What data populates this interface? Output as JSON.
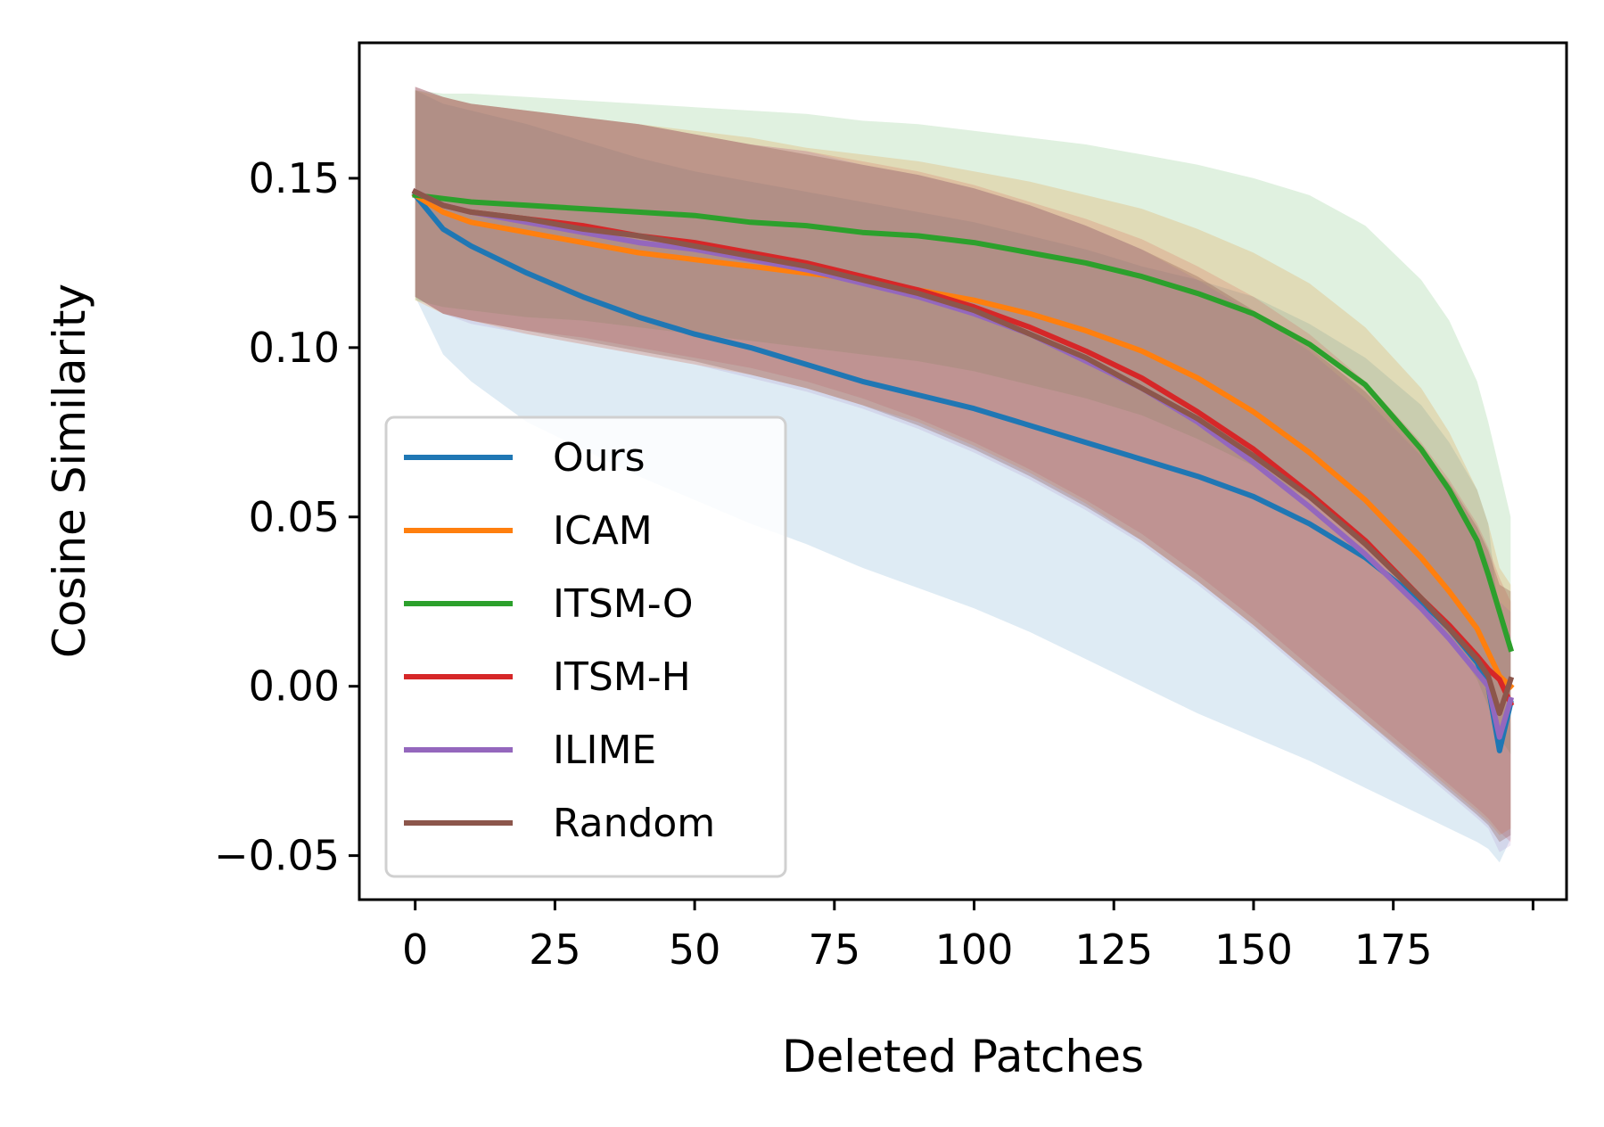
{
  "chart_data": {
    "type": "line",
    "title": "",
    "xlabel": "Deleted Patches",
    "ylabel": "Cosine Similarity",
    "xlim": [
      -10,
      206
    ],
    "ylim": [
      -0.063,
      0.19
    ],
    "xticks": [
      0,
      25,
      50,
      75,
      100,
      125,
      150,
      175
    ],
    "xtick_labels": [
      "0",
      "25",
      "50",
      "75",
      "100",
      "125",
      "150",
      "175"
    ],
    "yticks": [
      -0.05,
      0.0,
      0.05,
      0.1,
      0.15
    ],
    "ytick_labels": [
      "−0.05",
      "0.00",
      "0.05",
      "0.10",
      "0.15"
    ],
    "grid": false,
    "legend_position": "lower-left",
    "x": [
      0,
      5,
      10,
      20,
      30,
      40,
      50,
      60,
      70,
      80,
      90,
      100,
      110,
      120,
      130,
      140,
      150,
      160,
      170,
      180,
      185,
      190,
      192,
      194,
      196
    ],
    "series": [
      {
        "name": "Ours",
        "color": "#1f77b4",
        "band_alpha": 0.15,
        "values": [
          0.145,
          0.135,
          0.13,
          0.122,
          0.115,
          0.109,
          0.104,
          0.1,
          0.095,
          0.09,
          0.086,
          0.082,
          0.077,
          0.072,
          0.067,
          0.062,
          0.056,
          0.048,
          0.038,
          0.025,
          0.017,
          0.007,
          0.0,
          -0.019,
          -0.005
        ],
        "lower": [
          0.115,
          0.098,
          0.09,
          0.078,
          0.07,
          0.062,
          0.055,
          0.048,
          0.042,
          0.035,
          0.029,
          0.023,
          0.016,
          0.008,
          0.0,
          -0.008,
          -0.015,
          -0.022,
          -0.03,
          -0.038,
          -0.042,
          -0.046,
          -0.048,
          -0.052,
          -0.045
        ],
        "upper": [
          0.176,
          0.172,
          0.17,
          0.166,
          0.161,
          0.156,
          0.152,
          0.149,
          0.146,
          0.143,
          0.14,
          0.137,
          0.133,
          0.129,
          0.124,
          0.12,
          0.115,
          0.107,
          0.097,
          0.083,
          0.072,
          0.058,
          0.048,
          0.02,
          0.015
        ]
      },
      {
        "name": "ICAM",
        "color": "#ff7f0e",
        "band_alpha": 0.2,
        "values": [
          0.145,
          0.14,
          0.137,
          0.134,
          0.131,
          0.128,
          0.126,
          0.124,
          0.122,
          0.12,
          0.117,
          0.114,
          0.11,
          0.105,
          0.099,
          0.091,
          0.081,
          0.069,
          0.055,
          0.038,
          0.028,
          0.017,
          0.01,
          0.003,
          0.0
        ],
        "lower": [
          0.114,
          0.11,
          0.108,
          0.104,
          0.101,
          0.098,
          0.095,
          0.092,
          0.088,
          0.083,
          0.078,
          0.071,
          0.063,
          0.054,
          0.043,
          0.031,
          0.018,
          0.004,
          -0.01,
          -0.023,
          -0.03,
          -0.037,
          -0.04,
          -0.044,
          -0.042
        ],
        "upper": [
          0.176,
          0.174,
          0.172,
          0.17,
          0.168,
          0.166,
          0.164,
          0.162,
          0.159,
          0.157,
          0.155,
          0.152,
          0.149,
          0.145,
          0.141,
          0.135,
          0.128,
          0.119,
          0.106,
          0.088,
          0.075,
          0.058,
          0.048,
          0.035,
          0.03
        ]
      },
      {
        "name": "ITSM-O",
        "color": "#2ca02c",
        "band_alpha": 0.15,
        "values": [
          0.145,
          0.144,
          0.143,
          0.142,
          0.141,
          0.14,
          0.139,
          0.137,
          0.136,
          0.134,
          0.133,
          0.131,
          0.128,
          0.125,
          0.121,
          0.116,
          0.11,
          0.101,
          0.089,
          0.07,
          0.058,
          0.043,
          0.033,
          0.022,
          0.011
        ],
        "lower": [
          0.114,
          0.112,
          0.111,
          0.109,
          0.108,
          0.106,
          0.104,
          0.102,
          0.1,
          0.098,
          0.096,
          0.093,
          0.089,
          0.085,
          0.08,
          0.073,
          0.065,
          0.055,
          0.042,
          0.025,
          0.015,
          0.002,
          -0.006,
          -0.015,
          -0.02
        ],
        "upper": [
          0.176,
          0.175,
          0.175,
          0.174,
          0.173,
          0.172,
          0.171,
          0.17,
          0.169,
          0.167,
          0.166,
          0.164,
          0.162,
          0.16,
          0.157,
          0.154,
          0.15,
          0.145,
          0.136,
          0.12,
          0.108,
          0.09,
          0.078,
          0.064,
          0.05
        ]
      },
      {
        "name": "ITSM-H",
        "color": "#d62728",
        "band_alpha": 0.15,
        "values": [
          0.146,
          0.142,
          0.14,
          0.138,
          0.136,
          0.133,
          0.131,
          0.128,
          0.125,
          0.121,
          0.117,
          0.112,
          0.106,
          0.099,
          0.091,
          0.081,
          0.07,
          0.057,
          0.043,
          0.026,
          0.018,
          0.009,
          0.005,
          0.002,
          -0.005
        ],
        "lower": [
          0.115,
          0.11,
          0.108,
          0.105,
          0.103,
          0.1,
          0.097,
          0.094,
          0.09,
          0.085,
          0.079,
          0.072,
          0.064,
          0.055,
          0.045,
          0.033,
          0.02,
          0.006,
          -0.008,
          -0.022,
          -0.029,
          -0.036,
          -0.039,
          -0.043,
          -0.046
        ],
        "upper": [
          0.177,
          0.174,
          0.172,
          0.17,
          0.168,
          0.166,
          0.163,
          0.16,
          0.158,
          0.155,
          0.152,
          0.148,
          0.143,
          0.138,
          0.132,
          0.124,
          0.115,
          0.104,
          0.09,
          0.072,
          0.061,
          0.048,
          0.041,
          0.032,
          0.025
        ]
      },
      {
        "name": "ILIME",
        "color": "#9467bd",
        "band_alpha": 0.15,
        "values": [
          0.146,
          0.142,
          0.14,
          0.137,
          0.134,
          0.131,
          0.129,
          0.126,
          0.123,
          0.119,
          0.115,
          0.11,
          0.104,
          0.096,
          0.088,
          0.078,
          0.066,
          0.053,
          0.039,
          0.023,
          0.014,
          0.004,
          0.0,
          -0.015,
          -0.004
        ],
        "lower": [
          0.115,
          0.11,
          0.107,
          0.104,
          0.101,
          0.098,
          0.095,
          0.091,
          0.087,
          0.082,
          0.076,
          0.069,
          0.061,
          0.052,
          0.042,
          0.03,
          0.017,
          0.003,
          -0.011,
          -0.025,
          -0.032,
          -0.039,
          -0.042,
          -0.049,
          -0.047
        ],
        "upper": [
          0.177,
          0.174,
          0.172,
          0.17,
          0.168,
          0.166,
          0.163,
          0.16,
          0.158,
          0.154,
          0.151,
          0.147,
          0.142,
          0.136,
          0.129,
          0.12,
          0.11,
          0.099,
          0.085,
          0.068,
          0.057,
          0.044,
          0.037,
          0.025,
          0.022
        ]
      },
      {
        "name": "Random",
        "color": "#8c564b",
        "band_alpha": 0.3,
        "values": [
          0.146,
          0.142,
          0.14,
          0.138,
          0.135,
          0.133,
          0.13,
          0.127,
          0.124,
          0.12,
          0.116,
          0.111,
          0.104,
          0.097,
          0.088,
          0.079,
          0.068,
          0.056,
          0.042,
          0.026,
          0.017,
          0.008,
          0.003,
          -0.008,
          0.002
        ],
        "lower": [
          0.115,
          0.11,
          0.108,
          0.105,
          0.102,
          0.099,
          0.096,
          0.092,
          0.088,
          0.083,
          0.077,
          0.07,
          0.062,
          0.053,
          0.043,
          0.031,
          0.018,
          0.004,
          -0.01,
          -0.024,
          -0.031,
          -0.038,
          -0.041,
          -0.046,
          -0.044
        ],
        "upper": [
          0.177,
          0.174,
          0.172,
          0.17,
          0.168,
          0.166,
          0.163,
          0.16,
          0.157,
          0.154,
          0.151,
          0.147,
          0.142,
          0.136,
          0.129,
          0.121,
          0.111,
          0.1,
          0.087,
          0.07,
          0.06,
          0.047,
          0.04,
          0.03,
          0.028
        ]
      }
    ]
  }
}
